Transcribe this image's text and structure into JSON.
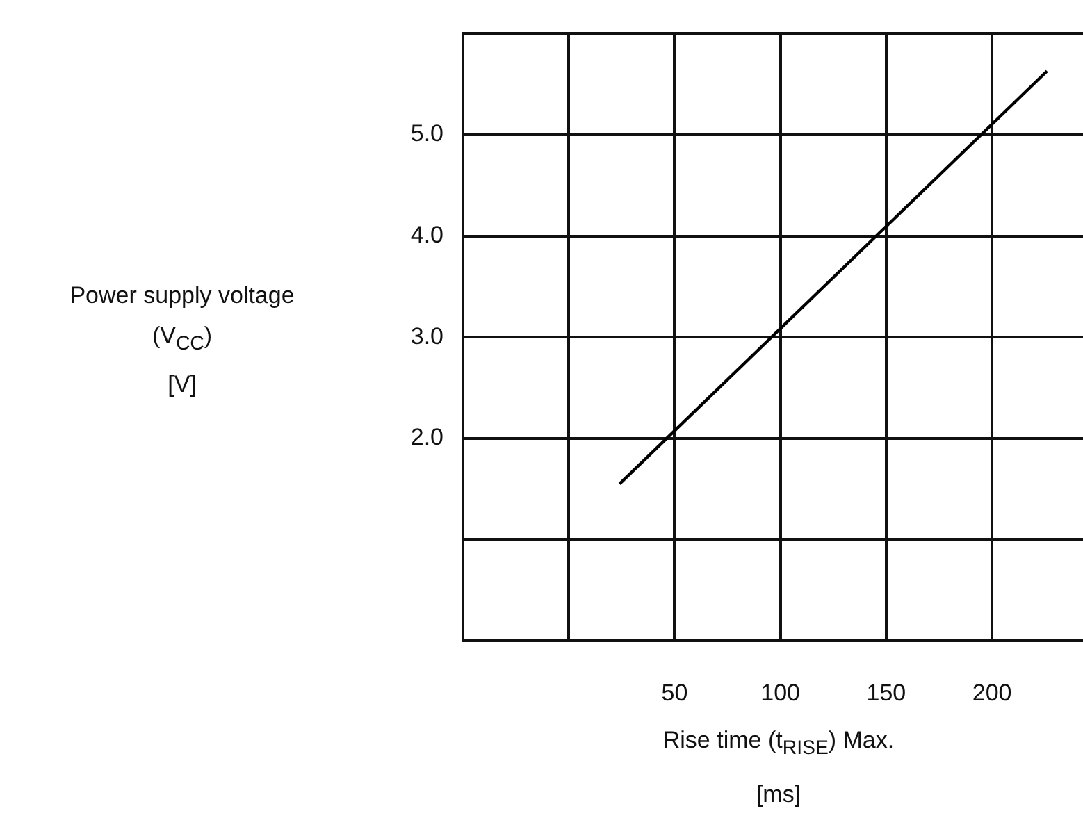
{
  "chart_data": {
    "type": "line",
    "xlabel": "Rise time (t$_{RISE}$) Max.\n[ms]",
    "ylabel": "Power supply voltage\n(V$_{CC}$)\n[V]",
    "series": [
      {
        "x": [
          24,
          226
        ],
        "values": [
          1.55,
          5.63
        ],
        "color": "#000000"
      }
    ],
    "xlim": [
      -50,
      243
    ],
    "xticks": [
      {
        "value": -50,
        "label": null
      },
      {
        "value": 0,
        "label": null
      },
      50,
      100,
      150,
      200
    ],
    "ylim": [
      0,
      6
    ],
    "yticks": [
      {
        "value": 1,
        "label": null
      },
      {
        "value": 2,
        "label": "2.0"
      },
      {
        "value": 3,
        "label": "3.0"
      },
      {
        "value": 4,
        "label": "4.0"
      },
      {
        "value": 5,
        "label": "5.0"
      },
      {
        "value": 6,
        "label": null
      }
    ],
    "grid": true,
    "legend": false,
    "marker": "none",
    "line_style": "solid"
  }
}
